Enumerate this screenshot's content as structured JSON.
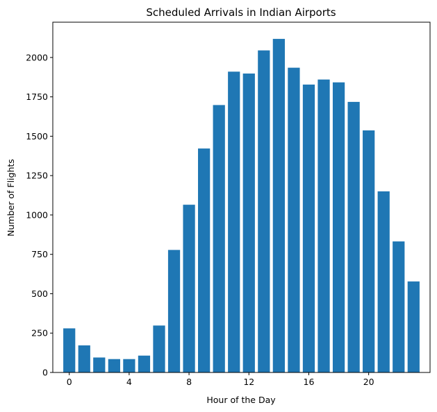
{
  "chart_data": {
    "type": "bar",
    "title": "Scheduled Arrivals in Indian Airports",
    "xlabel": "Hour of the Day",
    "ylabel": "Number of Flights",
    "x": [
      0,
      1,
      2,
      3,
      4,
      5,
      6,
      7,
      8,
      9,
      10,
      11,
      12,
      13,
      14,
      15,
      16,
      17,
      18,
      19,
      20,
      21,
      22,
      23
    ],
    "values": [
      280,
      172,
      95,
      85,
      85,
      107,
      298,
      778,
      1065,
      1422,
      1698,
      1910,
      1898,
      2045,
      2118,
      1935,
      1828,
      1860,
      1842,
      1718,
      1537,
      1150,
      832,
      578
    ],
    "xticks": [
      0,
      4,
      8,
      12,
      16,
      20
    ],
    "yticks": [
      0,
      250,
      500,
      750,
      1000,
      1250,
      1500,
      1750,
      2000
    ],
    "xlim": [
      -1.1,
      24.1
    ],
    "ylim": [
      0,
      2224
    ],
    "bar_color": "#1f77b4",
    "grid": false,
    "legend": "none"
  }
}
